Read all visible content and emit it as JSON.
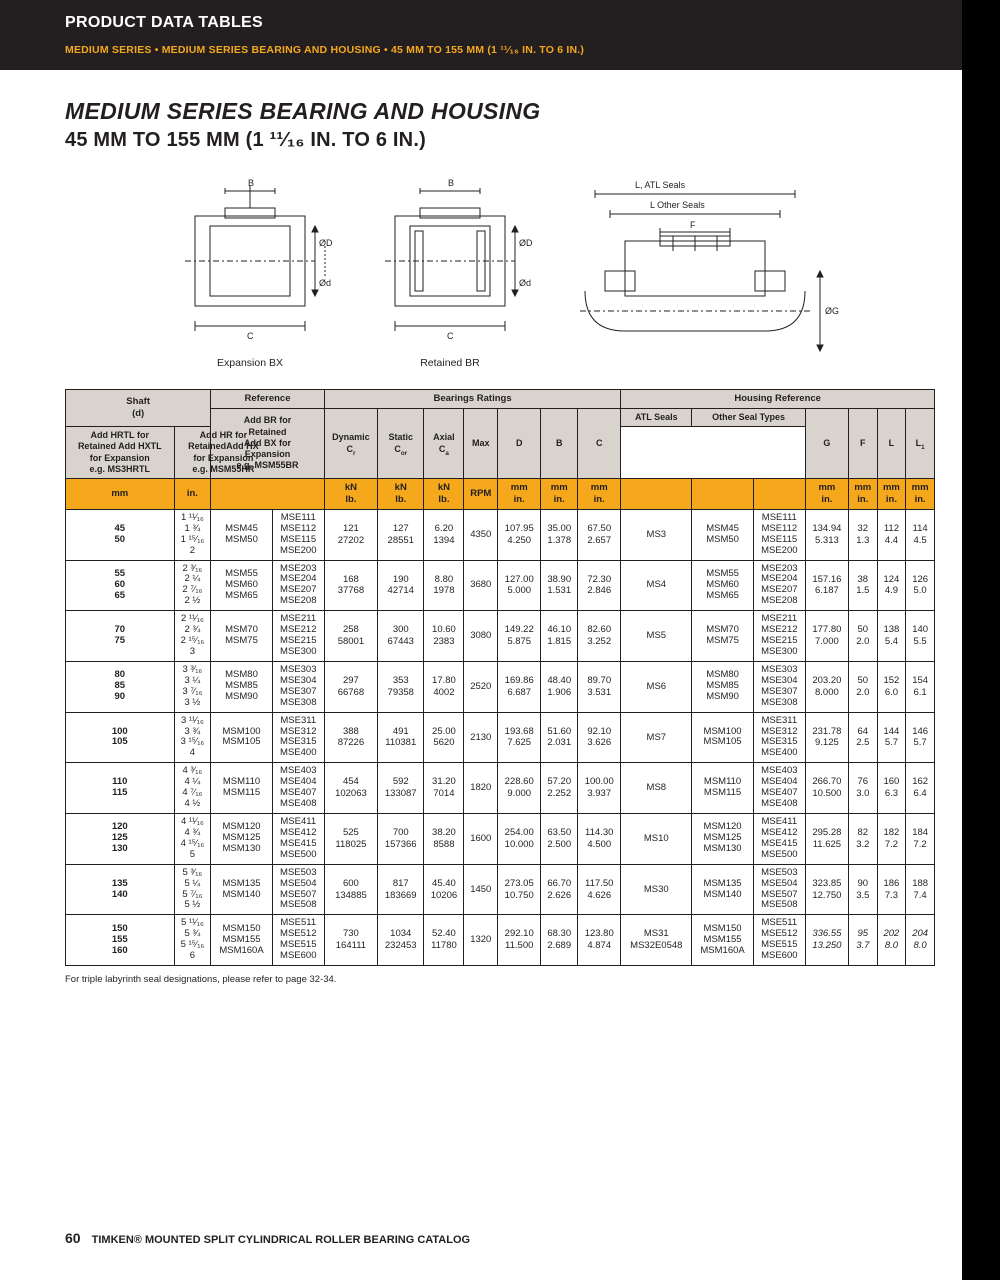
{
  "header": {
    "section": "PRODUCT DATA TABLES",
    "breadcrumb": "MEDIUM SERIES • MEDIUM SERIES BEARING AND HOUSING • 45 MM TO 155 MM (1 ¹¹⁄₁₆ IN. TO 6 IN.)"
  },
  "title": {
    "line1": "MEDIUM SERIES BEARING AND HOUSING",
    "line2": "45 MM TO 155 MM (1 ¹¹⁄₁₆ IN. TO 6 IN.)"
  },
  "diagrams": {
    "left_caption": "Expansion BX",
    "mid_caption": "Retained  BR",
    "labels": {
      "B": "B",
      "C": "C",
      "od": "Ød",
      "oD": "ØD",
      "oG": "ØG",
      "F": "F",
      "L_atl": "L, ATL Seals",
      "L_other": "L Other Seals"
    }
  },
  "table": {
    "group_headers": {
      "shaft": "Shaft\n(d)",
      "reference": "Reference",
      "bearings_ratings": "Bearings Ratings",
      "housing_reference": "Housing Reference"
    },
    "ref_note": "Add BR for Retained\nAdd BX for Expansion\ne.g. MSM55BR",
    "br_cols": {
      "dynamic": "Dynamic\nCᵣ",
      "static": "Static\nCₒᵣ",
      "axial": "Axial\nCₐ",
      "max": "Max",
      "D": "D",
      "B": "B",
      "C": "C"
    },
    "hr_atl_hdr": "ATL Seals",
    "hr_other_hdr": "Other Seal Types",
    "hr_atl_note": "Add HRTL for Retained Add HXTL for Expansion\ne.g. MS3HRTL",
    "hr_other_note": "Add HR for RetainedAdd HX for Expansion\ne.g. MSM55HR",
    "hr_cols": {
      "G": "G",
      "F": "F",
      "L": "L",
      "L1": "L₁"
    },
    "unit_row": {
      "mm": "mm",
      "in": "in.",
      "kn_lb": "kN\nlb.",
      "rpm": "RPM",
      "mm_in": "mm\nin."
    },
    "rows": [
      {
        "shaft_mm": [
          "45",
          "50"
        ],
        "shaft_in": [
          "1 ¹¹⁄₁₆",
          "1 ¾",
          "1 ¹⁵⁄₁₆",
          "2"
        ],
        "msm": [
          "MSM45",
          "MSM50"
        ],
        "mse": [
          "MSE111",
          "MSE112",
          "MSE115",
          "MSE200"
        ],
        "dyn": [
          "121",
          "27202"
        ],
        "stat": [
          "127",
          "28551"
        ],
        "ax": [
          "6.20",
          "1394"
        ],
        "rpm": "4350",
        "D": [
          "107.95",
          "4.250"
        ],
        "B": [
          "35.00",
          "1.378"
        ],
        "C": [
          "67.50",
          "2.657"
        ],
        "atl": "MS3",
        "hr_msm": [
          "MSM45",
          "MSM50"
        ],
        "hr_mse": [
          "MSE111",
          "MSE112",
          "MSE115",
          "MSE200"
        ],
        "G": [
          "134.94",
          "5.313"
        ],
        "F": [
          "32",
          "1.3"
        ],
        "L": [
          "112",
          "4.4"
        ],
        "L1": [
          "114",
          "4.5"
        ]
      },
      {
        "shaft_mm": [
          "55",
          "60",
          "65"
        ],
        "shaft_in": [
          "2 ³⁄₁₆",
          "2 ¼",
          "2 ⁷⁄₁₆",
          "2 ½"
        ],
        "msm": [
          "MSM55",
          "MSM60",
          "MSM65"
        ],
        "mse": [
          "MSE203",
          "MSE204",
          "MSE207",
          "MSE208"
        ],
        "dyn": [
          "168",
          "37768"
        ],
        "stat": [
          "190",
          "42714"
        ],
        "ax": [
          "8.80",
          "1978"
        ],
        "rpm": "3680",
        "D": [
          "127.00",
          "5.000"
        ],
        "B": [
          "38.90",
          "1.531"
        ],
        "C": [
          "72.30",
          "2.846"
        ],
        "atl": "MS4",
        "hr_msm": [
          "MSM55",
          "MSM60",
          "MSM65"
        ],
        "hr_mse": [
          "MSE203",
          "MSE204",
          "MSE207",
          "MSE208"
        ],
        "G": [
          "157.16",
          "6.187"
        ],
        "F": [
          "38",
          "1.5"
        ],
        "L": [
          "124",
          "4.9"
        ],
        "L1": [
          "126",
          "5.0"
        ]
      },
      {
        "shaft_mm": [
          "70",
          "75"
        ],
        "shaft_in": [
          "2 ¹¹⁄₁₆",
          "2 ¾",
          "2 ¹⁵⁄₁₆",
          "3"
        ],
        "msm": [
          "MSM70",
          "MSM75"
        ],
        "mse": [
          "MSE211",
          "MSE212",
          "MSE215",
          "MSE300"
        ],
        "dyn": [
          "258",
          "58001"
        ],
        "stat": [
          "300",
          "67443"
        ],
        "ax": [
          "10.60",
          "2383"
        ],
        "rpm": "3080",
        "D": [
          "149.22",
          "5.875"
        ],
        "B": [
          "46.10",
          "1.815"
        ],
        "C": [
          "82.60",
          "3.252"
        ],
        "atl": "MS5",
        "hr_msm": [
          "MSM70",
          "MSM75"
        ],
        "hr_mse": [
          "MSE211",
          "MSE212",
          "MSE215",
          "MSE300"
        ],
        "G": [
          "177.80",
          "7.000"
        ],
        "F": [
          "50",
          "2.0"
        ],
        "L": [
          "138",
          "5.4"
        ],
        "L1": [
          "140",
          "5.5"
        ]
      },
      {
        "shaft_mm": [
          "80",
          "85",
          "90"
        ],
        "shaft_in": [
          "3 ³⁄₁₆",
          "3 ¼",
          "3 ⁷⁄₁₆",
          "3 ½"
        ],
        "msm": [
          "MSM80",
          "MSM85",
          "MSM90"
        ],
        "mse": [
          "MSE303",
          "MSE304",
          "MSE307",
          "MSE308"
        ],
        "dyn": [
          "297",
          "66768"
        ],
        "stat": [
          "353",
          "79358"
        ],
        "ax": [
          "17.80",
          "4002"
        ],
        "rpm": "2520",
        "D": [
          "169.86",
          "6.687"
        ],
        "B": [
          "48.40",
          "1.906"
        ],
        "C": [
          "89.70",
          "3.531"
        ],
        "atl": "MS6",
        "hr_msm": [
          "MSM80",
          "MSM85",
          "MSM90"
        ],
        "hr_mse": [
          "MSE303",
          "MSE304",
          "MSE307",
          "MSE308"
        ],
        "G": [
          "203.20",
          "8.000"
        ],
        "F": [
          "50",
          "2.0"
        ],
        "L": [
          "152",
          "6.0"
        ],
        "L1": [
          "154",
          "6.1"
        ]
      },
      {
        "shaft_mm": [
          "100",
          "105"
        ],
        "shaft_in": [
          "3 ¹¹⁄₁₆",
          "3 ¾",
          "3 ¹⁵⁄₁₆",
          "4"
        ],
        "msm": [
          "MSM100",
          "MSM105"
        ],
        "mse": [
          "MSE311",
          "MSE312",
          "MSE315",
          "MSE400"
        ],
        "dyn": [
          "388",
          "87226"
        ],
        "stat": [
          "491",
          "110381"
        ],
        "ax": [
          "25.00",
          "5620"
        ],
        "rpm": "2130",
        "D": [
          "193.68",
          "7.625"
        ],
        "B": [
          "51.60",
          "2.031"
        ],
        "C": [
          "92.10",
          "3.626"
        ],
        "atl": "MS7",
        "hr_msm": [
          "MSM100",
          "MSM105"
        ],
        "hr_mse": [
          "MSE311",
          "MSE312",
          "MSE315",
          "MSE400"
        ],
        "G": [
          "231.78",
          "9.125"
        ],
        "F": [
          "64",
          "2.5"
        ],
        "L": [
          "144",
          "5.7"
        ],
        "L1": [
          "146",
          "5.7"
        ]
      },
      {
        "shaft_mm": [
          "110",
          "115"
        ],
        "shaft_in": [
          "4 ³⁄₁₆",
          "4 ¼",
          "4 ⁷⁄₁₆",
          "4 ½"
        ],
        "msm": [
          "MSM110",
          "MSM115"
        ],
        "mse": [
          "MSE403",
          "MSE404",
          "MSE407",
          "MSE408"
        ],
        "dyn": [
          "454",
          "102063"
        ],
        "stat": [
          "592",
          "133087"
        ],
        "ax": [
          "31.20",
          "7014"
        ],
        "rpm": "1820",
        "D": [
          "228.60",
          "9.000"
        ],
        "B": [
          "57.20",
          "2.252"
        ],
        "C": [
          "100.00",
          "3.937"
        ],
        "atl": "MS8",
        "hr_msm": [
          "MSM110",
          "MSM115"
        ],
        "hr_mse": [
          "MSE403",
          "MSE404",
          "MSE407",
          "MSE408"
        ],
        "G": [
          "266.70",
          "10.500"
        ],
        "F": [
          "76",
          "3.0"
        ],
        "L": [
          "160",
          "6.3"
        ],
        "L1": [
          "162",
          "6.4"
        ]
      },
      {
        "shaft_mm": [
          "120",
          "125",
          "130"
        ],
        "shaft_in": [
          "4 ¹¹⁄₁₆",
          "4 ¾",
          "4 ¹⁵⁄₁₆",
          "5"
        ],
        "msm": [
          "MSM120",
          "MSM125",
          "MSM130"
        ],
        "mse": [
          "MSE411",
          "MSE412",
          "MSE415",
          "MSE500"
        ],
        "dyn": [
          "525",
          "118025"
        ],
        "stat": [
          "700",
          "157366"
        ],
        "ax": [
          "38.20",
          "8588"
        ],
        "rpm": "1600",
        "D": [
          "254.00",
          "10.000"
        ],
        "B": [
          "63.50",
          "2.500"
        ],
        "C": [
          "114.30",
          "4.500"
        ],
        "atl": "MS10",
        "hr_msm": [
          "MSM120",
          "MSM125",
          "MSM130"
        ],
        "hr_mse": [
          "MSE411",
          "MSE412",
          "MSE415",
          "MSE500"
        ],
        "G": [
          "295.28",
          "11.625"
        ],
        "F": [
          "82",
          "3.2"
        ],
        "L": [
          "182",
          "7.2"
        ],
        "L1": [
          "184",
          "7.2"
        ]
      },
      {
        "shaft_mm": [
          "135",
          "140"
        ],
        "shaft_in": [
          "5 ³⁄₁₆",
          "5 ¼",
          "5 ⁷⁄₁₆",
          "5 ½"
        ],
        "msm": [
          "MSM135",
          "MSM140"
        ],
        "mse": [
          "MSE503",
          "MSE504",
          "MSE507",
          "MSE508"
        ],
        "dyn": [
          "600",
          "134885"
        ],
        "stat": [
          "817",
          "183669"
        ],
        "ax": [
          "45.40",
          "10206"
        ],
        "rpm": "1450",
        "D": [
          "273.05",
          "10.750"
        ],
        "B": [
          "66.70",
          "2.626"
        ],
        "C": [
          "117.50",
          "4.626"
        ],
        "atl": "MS30",
        "hr_msm": [
          "MSM135",
          "MSM140"
        ],
        "hr_mse": [
          "MSE503",
          "MSE504",
          "MSE507",
          "MSE508"
        ],
        "G": [
          "323.85",
          "12.750"
        ],
        "F": [
          "90",
          "3.5"
        ],
        "L": [
          "186",
          "7.3"
        ],
        "L1": [
          "188",
          "7.4"
        ]
      },
      {
        "shaft_mm": [
          "150",
          "155",
          "160"
        ],
        "shaft_in": [
          "5 ¹¹⁄₁₆",
          "5 ¾",
          "5 ¹⁵⁄₁₆",
          "6"
        ],
        "msm": [
          "MSM150",
          "MSM155",
          "MSM160A"
        ],
        "mse": [
          "MSE511",
          "MSE512",
          "MSE515",
          "MSE600"
        ],
        "dyn": [
          "730",
          "164111"
        ],
        "stat": [
          "1034",
          "232453"
        ],
        "ax": [
          "52.40",
          "11780"
        ],
        "rpm": "1320",
        "D": [
          "292.10",
          "11.500"
        ],
        "B": [
          "68.30",
          "2.689"
        ],
        "C": [
          "123.80",
          "4.874"
        ],
        "atl": "MS31\nMS32E0548",
        "hr_msm": [
          "MSM150",
          "MSM155",
          "MSM160A"
        ],
        "hr_mse": [
          "MSE511",
          "MSE512",
          "MSE515",
          "MSE600"
        ],
        "G": [
          "336.55",
          "13.250"
        ],
        "F": [
          "95",
          "3.7"
        ],
        "L": [
          "202",
          "8.0"
        ],
        "L1": [
          "204",
          "8.0"
        ],
        "italic_last": true
      }
    ],
    "footnote": "For triple labyrinth seal designations, please refer to page 32-34."
  },
  "footer": {
    "page": "60",
    "text": "TIMKEN® MOUNTED SPLIT CYLINDRICAL ROLLER BEARING CATALOG"
  },
  "colors": {
    "orange": "#f5a81c",
    "black": "#231f20",
    "grey": "#d8d4cd"
  }
}
